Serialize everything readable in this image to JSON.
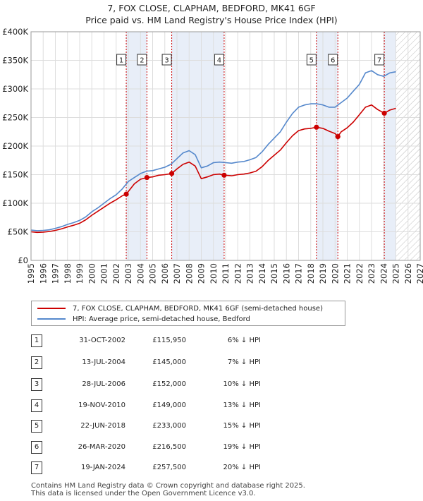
{
  "title_line1": "7, FOX CLOSE, CLAPHAM, BEDFORD, MK41 6GF",
  "title_line2": "Price paid vs. HM Land Registry's House Price Index (HPI)",
  "colors": {
    "price_line": "#cc0000",
    "hpi_line": "#5588cc",
    "shade": "#e8eef8",
    "marker_border": "#cc0000",
    "hatch": "#bbbbbb"
  },
  "legend": {
    "price_label": "7, FOX CLOSE, CLAPHAM, BEDFORD, MK41 6GF (semi-detached house)",
    "hpi_label": "HPI: Average price, semi-detached house, Bedford"
  },
  "transactions": [
    {
      "id": "1",
      "date": "31-OCT-2002",
      "price": "£115,950",
      "hpi_diff": "6% ↓ HPI"
    },
    {
      "id": "2",
      "date": "13-JUL-2004",
      "price": "£145,000",
      "hpi_diff": "7% ↓ HPI"
    },
    {
      "id": "3",
      "date": "28-JUL-2006",
      "price": "£152,000",
      "hpi_diff": "10% ↓ HPI"
    },
    {
      "id": "4",
      "date": "19-NOV-2010",
      "price": "£149,000",
      "hpi_diff": "13% ↓ HPI"
    },
    {
      "id": "5",
      "date": "22-JUN-2018",
      "price": "£233,000",
      "hpi_diff": "15% ↓ HPI"
    },
    {
      "id": "6",
      "date": "26-MAR-2020",
      "price": "£216,500",
      "hpi_diff": "19% ↓ HPI"
    },
    {
      "id": "7",
      "date": "19-JAN-2024",
      "price": "£257,500",
      "hpi_diff": "20% ↓ HPI"
    }
  ],
  "footer_line1": "Contains HM Land Registry data © Crown copyright and database right 2025.",
  "footer_line2": "This data is licensed under the Open Government Licence v3.0.",
  "chart_data": {
    "type": "line",
    "title": "7, FOX CLOSE, CLAPHAM, BEDFORD, MK41 6GF",
    "subtitle": "Price paid vs. HM Land Registry's House Price Index (HPI)",
    "xlim": [
      1995,
      2027
    ],
    "ylim": [
      0,
      400000
    ],
    "x_ticks": [
      1995,
      1996,
      1997,
      1998,
      1999,
      2000,
      2001,
      2002,
      2003,
      2004,
      2005,
      2006,
      2007,
      2008,
      2009,
      2010,
      2011,
      2012,
      2013,
      2014,
      2015,
      2016,
      2017,
      2018,
      2019,
      2020,
      2021,
      2022,
      2023,
      2024,
      2025,
      2026,
      2027
    ],
    "y_ticks": [
      {
        "value": 0,
        "label": "£0"
      },
      {
        "value": 50000,
        "label": "£50K"
      },
      {
        "value": 100000,
        "label": "£100K"
      },
      {
        "value": 150000,
        "label": "£150K"
      },
      {
        "value": 200000,
        "label": "£200K"
      },
      {
        "value": 250000,
        "label": "£250K"
      },
      {
        "value": 300000,
        "label": "£300K"
      },
      {
        "value": 350000,
        "label": "£350K"
      },
      {
        "value": 400000,
        "label": "£400K"
      }
    ],
    "grid": true,
    "future_hatch_from": 2025.0,
    "shaded_periods": [
      [
        2002.83,
        2004.53
      ],
      [
        2006.57,
        2010.88
      ],
      [
        2018.47,
        2020.23
      ],
      [
        2024.05,
        2025.0
      ]
    ],
    "series": [
      {
        "name": "HPI: Average price, semi-detached house, Bedford",
        "x": [
          1995,
          1995.5,
          1996,
          1996.5,
          1997,
          1997.5,
          1998,
          1998.5,
          1999,
          1999.5,
          2000,
          2000.5,
          2001,
          2001.5,
          2002,
          2002.5,
          2003,
          2003.5,
          2004,
          2004.5,
          2005,
          2005.5,
          2006,
          2006.5,
          2007,
          2007.5,
          2008,
          2008.5,
          2009,
          2009.5,
          2010,
          2010.5,
          2011,
          2011.5,
          2012,
          2012.5,
          2013,
          2013.5,
          2014,
          2014.5,
          2015,
          2015.5,
          2016,
          2016.5,
          2017,
          2017.5,
          2018,
          2018.5,
          2019,
          2019.5,
          2020,
          2020.5,
          2021,
          2021.5,
          2022,
          2022.5,
          2023,
          2023.5,
          2024,
          2024.5,
          2025
        ],
        "values": [
          53000,
          52000,
          52500,
          53500,
          56000,
          59000,
          63000,
          66000,
          70000,
          76000,
          85000,
          92000,
          100000,
          108000,
          115000,
          125000,
          138000,
          145000,
          152000,
          156000,
          157000,
          160000,
          163000,
          168000,
          178000,
          188000,
          192000,
          185000,
          162000,
          165000,
          171000,
          172000,
          171000,
          170000,
          172000,
          173000,
          176000,
          180000,
          190000,
          203000,
          214000,
          225000,
          242000,
          257000,
          268000,
          272000,
          274000,
          274000,
          272000,
          268000,
          268000,
          276000,
          284000,
          296000,
          308000,
          328000,
          332000,
          325000,
          322000,
          328000,
          330000
        ]
      },
      {
        "name": "7, FOX CLOSE, CLAPHAM, BEDFORD, MK41 6GF (semi-detached house)",
        "x": [
          1995,
          1995.5,
          1996,
          1996.5,
          1997,
          1997.5,
          1998,
          1998.5,
          1999,
          1999.5,
          2000,
          2000.5,
          2001,
          2001.5,
          2002,
          2002.5,
          2002.83,
          2003.5,
          2004,
          2004.53,
          2005,
          2005.5,
          2006,
          2006.57,
          2007,
          2007.5,
          2008,
          2008.5,
          2009,
          2009.5,
          2010,
          2010.5,
          2010.88,
          2011.5,
          2012,
          2012.5,
          2013,
          2013.5,
          2014,
          2014.5,
          2015,
          2015.5,
          2016,
          2016.5,
          2017,
          2017.5,
          2018,
          2018.47,
          2019,
          2019.5,
          2020,
          2020.23,
          2020.5,
          2021,
          2021.5,
          2022,
          2022.5,
          2023,
          2023.5,
          2024.05,
          2024.5,
          2025
        ],
        "values": [
          50000,
          49000,
          49500,
          50500,
          52500,
          55000,
          58500,
          61500,
          65000,
          71000,
          79000,
          86000,
          93000,
          100000,
          106000,
          113000,
          115950,
          134000,
          142000,
          145000,
          146000,
          149000,
          150000,
          152000,
          160000,
          168000,
          172000,
          165000,
          143000,
          146000,
          150000,
          151000,
          149000,
          148000,
          150000,
          151000,
          153000,
          156000,
          164000,
          175000,
          184000,
          193000,
          206000,
          218000,
          227000,
          230000,
          231000,
          233000,
          231000,
          226000,
          222000,
          216500,
          225000,
          232000,
          242000,
          255000,
          268000,
          272000,
          264000,
          257500,
          263000,
          266000
        ]
      }
    ],
    "sale_markers": [
      {
        "id": "1",
        "x": 2002.83,
        "y": 115950
      },
      {
        "id": "2",
        "x": 2004.53,
        "y": 145000
      },
      {
        "id": "3",
        "x": 2006.57,
        "y": 152000
      },
      {
        "id": "4",
        "x": 2010.88,
        "y": 149000
      },
      {
        "id": "5",
        "x": 2018.47,
        "y": 233000
      },
      {
        "id": "6",
        "x": 2020.23,
        "y": 216500
      },
      {
        "id": "7",
        "x": 2024.05,
        "y": 257500
      }
    ]
  }
}
